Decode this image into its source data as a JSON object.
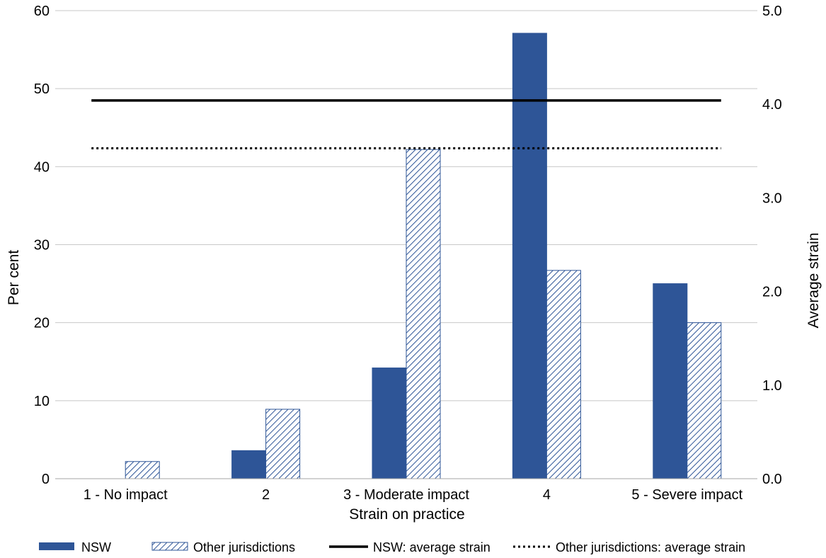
{
  "chart_data": {
    "type": "bar",
    "xlabel": "Strain on practice",
    "ylabel": "Per cent",
    "ylabel_right": "Average strain",
    "categories": [
      "1 - No impact",
      "2",
      "3 - Moderate impact",
      "4",
      "5 - Severe impact"
    ],
    "ylim": [
      0,
      60
    ],
    "yticks": [
      "0",
      "10",
      "20",
      "30",
      "40",
      "50",
      "60"
    ],
    "ylim_right": [
      0,
      5
    ],
    "yticks_right": [
      "0.0",
      "1.0",
      "2.0",
      "3.0",
      "4.0",
      "5.0"
    ],
    "grid": true,
    "legend_position": "bottom",
    "series": [
      {
        "name": "NSW",
        "kind": "bar",
        "pattern": "solid",
        "color": "#2e5597",
        "values": [
          0,
          3.6,
          14.2,
          57.1,
          25.0
        ]
      },
      {
        "name": "Other jurisdictions",
        "kind": "bar",
        "pattern": "hatched",
        "color": "#2e5597",
        "values": [
          2.2,
          8.9,
          42.2,
          26.7,
          20.0
        ]
      },
      {
        "name": "NSW: average strain",
        "kind": "line",
        "axis": "right",
        "style": "solid",
        "color": "#000000",
        "value": 4.04
      },
      {
        "name": "Other jurisdictions: average strain",
        "kind": "line",
        "axis": "right",
        "style": "dotted",
        "color": "#000000",
        "value": 3.53
      }
    ]
  }
}
